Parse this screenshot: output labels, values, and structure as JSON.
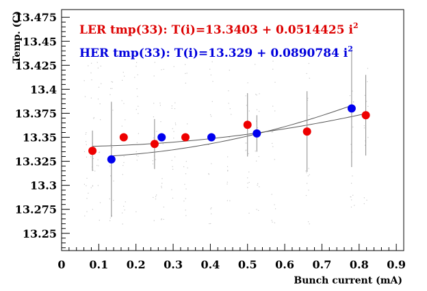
{
  "chart_data": {
    "type": "scatter",
    "xlabel": "Bunch current (mA)",
    "ylabel": "Temp. (C)",
    "xlim": [
      0,
      0.92
    ],
    "ylim": [
      13.232,
      13.483
    ],
    "x_ticks": [
      "0",
      "0.1",
      "0.2",
      "0.3",
      "0.4",
      "0.5",
      "0.6",
      "0.7",
      "0.8",
      "0.9"
    ],
    "y_ticks": [
      "13.25",
      "13.275",
      "13.3",
      "13.325",
      "13.35",
      "13.375",
      "13.4",
      "13.425",
      "13.45",
      "13.475"
    ],
    "grid": false,
    "annotations": [
      {
        "series": "LER",
        "text": "LER tmp(33): T(i)=13.3403 + 0.0514425 i",
        "superscript": "2",
        "color": "#dd0000"
      },
      {
        "series": "HER",
        "text": "HER tmp(33): T(i)=13.329 + 0.0890784 i",
        "superscript": "2",
        "color": "#0000dd"
      }
    ],
    "series": [
      {
        "name": "LER",
        "color": "#ee0000",
        "fit": {
          "a": 13.3403,
          "b": 0.0514425
        },
        "x": [
          0.083,
          0.167,
          0.25,
          0.333,
          0.5,
          0.66,
          0.818
        ],
        "y": [
          13.336,
          13.35,
          13.343,
          13.35,
          13.363,
          13.356,
          13.373
        ],
        "err": [
          0.021,
          0.0,
          0.026,
          0.0,
          0.033,
          0.042,
          0.042
        ]
      },
      {
        "name": "HER",
        "color": "#0000ee",
        "fit": {
          "a": 13.329,
          "b": 0.0890784
        },
        "x": [
          0.134,
          0.269,
          0.403,
          0.525,
          0.78
        ],
        "y": [
          13.327,
          13.35,
          13.35,
          13.354,
          13.38
        ],
        "err": [
          0.06,
          0.0,
          0.0,
          0.019,
          0.061
        ]
      }
    ]
  }
}
